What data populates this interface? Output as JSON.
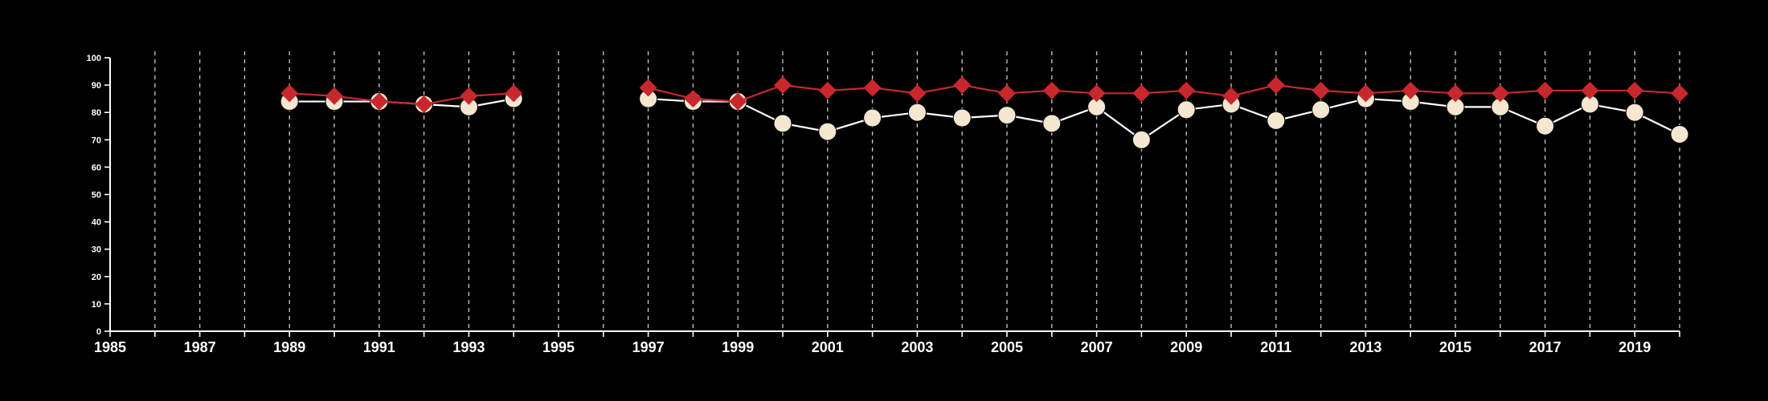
{
  "chart_data": {
    "type": "line",
    "title": "",
    "xlabel": "",
    "ylabel": "",
    "xlim": [
      1985,
      2020
    ],
    "ylim": [
      0,
      100
    ],
    "x_ticks": [
      1985,
      1987,
      1989,
      1991,
      1993,
      1995,
      1997,
      1999,
      2001,
      2003,
      2005,
      2007,
      2009,
      2011,
      2013,
      2015,
      2017,
      2019
    ],
    "y_ticks": [
      0,
      10,
      20,
      30,
      40,
      50,
      60,
      70,
      80,
      90,
      100
    ],
    "vertical_gridlines": "dashed, one per year",
    "background_color": "#000000",
    "series": [
      {
        "marker": "circle",
        "color": "#f5e6d0",
        "line_color": "#ffffff",
        "points": [
          [
            1989,
            84
          ],
          [
            1990,
            84
          ],
          [
            1991,
            84
          ],
          [
            1992,
            83
          ],
          [
            1993,
            82
          ],
          [
            1994,
            85
          ],
          [
            1997,
            85
          ],
          [
            1998,
            84
          ],
          [
            1999,
            84
          ],
          [
            2000,
            76
          ],
          [
            2001,
            73
          ],
          [
            2002,
            78
          ],
          [
            2003,
            80
          ],
          [
            2004,
            78
          ],
          [
            2005,
            79
          ],
          [
            2006,
            76
          ],
          [
            2007,
            82
          ],
          [
            2008,
            70
          ],
          [
            2009,
            81
          ],
          [
            2010,
            83
          ],
          [
            2011,
            77
          ],
          [
            2012,
            81
          ],
          [
            2013,
            85
          ],
          [
            2014,
            84
          ],
          [
            2015,
            82
          ],
          [
            2016,
            82
          ],
          [
            2017,
            75
          ],
          [
            2018,
            83
          ],
          [
            2019,
            80
          ],
          [
            2020,
            72
          ]
        ]
      },
      {
        "marker": "diamond",
        "color": "#c8282d",
        "line_color": "#c8282d",
        "points": [
          [
            1989,
            87
          ],
          [
            1990,
            86
          ],
          [
            1991,
            84
          ],
          [
            1992,
            83
          ],
          [
            1993,
            86
          ],
          [
            1994,
            87
          ],
          [
            1997,
            89
          ],
          [
            1998,
            85
          ],
          [
            1999,
            84
          ],
          [
            2000,
            90
          ],
          [
            2001,
            88
          ],
          [
            2002,
            89
          ],
          [
            2003,
            87
          ],
          [
            2004,
            90
          ],
          [
            2005,
            87
          ],
          [
            2006,
            88
          ],
          [
            2007,
            87
          ],
          [
            2008,
            87
          ],
          [
            2009,
            88
          ],
          [
            2010,
            86
          ],
          [
            2011,
            90
          ],
          [
            2012,
            88
          ],
          [
            2013,
            87
          ],
          [
            2014,
            88
          ],
          [
            2015,
            87
          ],
          [
            2016,
            87
          ],
          [
            2017,
            88
          ],
          [
            2018,
            88
          ],
          [
            2019,
            88
          ],
          [
            2020,
            87
          ]
        ]
      }
    ]
  }
}
